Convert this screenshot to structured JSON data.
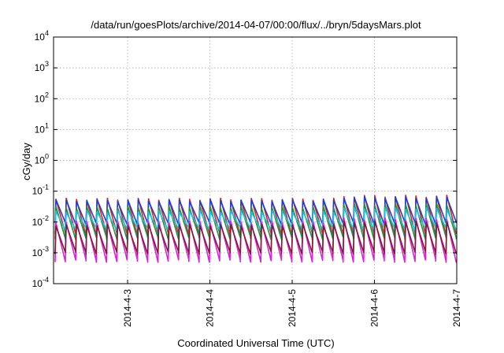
{
  "chart_data": {
    "type": "line",
    "title": "/data/run/goesPlots/archive/2014-04-07/00:00/flux/../bryn/5daysMars.plot",
    "xlabel": "Coordinated Universal Time (UTC)",
    "ylabel": "cGy/day",
    "y_scale": "log",
    "ylim": [
      0.0001,
      10000
    ],
    "xlim_days": [
      "2014-04-02 02:24",
      "2014-04-07 00:00"
    ],
    "y_ticks": [
      {
        "value": 0.0001,
        "base": "10",
        "exp": "-4"
      },
      {
        "value": 0.001,
        "base": "10",
        "exp": "-3"
      },
      {
        "value": 0.01,
        "base": "10",
        "exp": "-2"
      },
      {
        "value": 0.1,
        "base": "10",
        "exp": "-1"
      },
      {
        "value": 1,
        "base": "10",
        "exp": "0"
      },
      {
        "value": 10,
        "base": "10",
        "exp": "1"
      },
      {
        "value": 100,
        "base": "10",
        "exp": "2"
      },
      {
        "value": 1000,
        "base": "10",
        "exp": "3"
      },
      {
        "value": 10000,
        "base": "10",
        "exp": "4"
      }
    ],
    "x_ticks": [
      {
        "label": "2014-4-3",
        "day": 1.0
      },
      {
        "label": "2014-4-4",
        "day": 2.0
      },
      {
        "label": "2014-4-5",
        "day": 3.0
      },
      {
        "label": "2014-4-6",
        "day": 4.0
      },
      {
        "label": "2014-4-7",
        "day": 5.0
      }
    ],
    "grid": true,
    "period_hours": 3,
    "series": [
      {
        "color": "#e8231d",
        "peak": 0.055,
        "trough": 0.004
      },
      {
        "color": "#1a3fd6",
        "peak": 0.05,
        "trough": 0.009
      },
      {
        "color": "#1f8f4a",
        "peak": 0.03,
        "trough": 0.003
      },
      {
        "color": "#19c3d8",
        "peak": 0.022,
        "trough": 0.006
      },
      {
        "color": "#e020d8",
        "peak": 0.01,
        "trough": 0.00055
      },
      {
        "color": "#7a1e2f",
        "peak": 0.008,
        "trough": 0.001
      }
    ]
  }
}
